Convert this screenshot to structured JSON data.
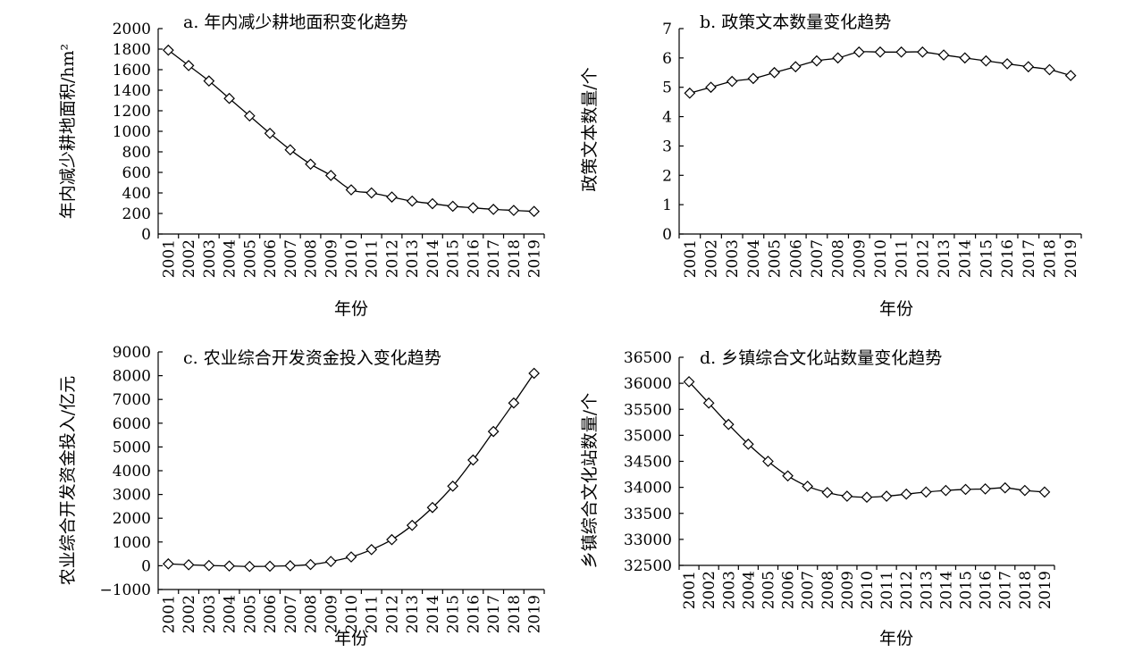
{
  "chart_data": [
    {
      "type": "line",
      "title": "a. 年内减少耕地面积变化趋势",
      "xlabel": "年份",
      "ylabel": "年内减少耕地面积/hm²",
      "ylim": [
        0,
        2000
      ],
      "yticks": [
        0,
        200,
        400,
        600,
        800,
        1000,
        1200,
        1400,
        1600,
        1800,
        2000
      ],
      "x": [
        "2001",
        "2002",
        "2003",
        "2004",
        "2005",
        "2006",
        "2007",
        "2008",
        "2009",
        "2010",
        "2011",
        "2012",
        "2013",
        "2014",
        "2015",
        "2016",
        "2017",
        "2018",
        "2019"
      ],
      "values": [
        1790,
        1640,
        1490,
        1320,
        1150,
        980,
        820,
        680,
        570,
        430,
        400,
        360,
        320,
        295,
        270,
        255,
        240,
        230,
        220
      ],
      "grid": false
    },
    {
      "type": "line",
      "title": "b. 政策文本数量变化趋势",
      "xlabel": "年份",
      "ylabel": "政策文本数量/个",
      "ylim": [
        0,
        7
      ],
      "yticks": [
        0,
        1,
        2,
        3,
        4,
        5,
        6,
        7
      ],
      "x": [
        "2001",
        "2002",
        "2003",
        "2004",
        "2005",
        "2006",
        "2007",
        "2008",
        "2009",
        "2010",
        "2011",
        "2012",
        "2013",
        "2014",
        "2015",
        "2016",
        "2017",
        "2018",
        "2019"
      ],
      "values": [
        4.8,
        5.0,
        5.2,
        5.3,
        5.5,
        5.7,
        5.9,
        6.0,
        6.2,
        6.2,
        6.2,
        6.2,
        6.1,
        6.0,
        5.9,
        5.8,
        5.7,
        5.6,
        5.4
      ],
      "grid": false
    },
    {
      "type": "line",
      "title": "c. 农业综合开发资金投入变化趋势",
      "xlabel": "年份",
      "ylabel": "农业综合开发资金投入/亿元",
      "ylim": [
        -1000,
        9000
      ],
      "yticks": [
        -1000,
        0,
        1000,
        2000,
        3000,
        4000,
        5000,
        6000,
        7000,
        8000,
        9000
      ],
      "ytick_labels": [
        "−1000",
        "0",
        "1000",
        "2000",
        "3000",
        "4000",
        "5000",
        "6000",
        "7000",
        "8000",
        "9000"
      ],
      "x": [
        "2001",
        "2002",
        "2003",
        "2004",
        "2005",
        "2006",
        "2007",
        "2008",
        "2009",
        "2010",
        "2011",
        "2012",
        "2013",
        "2014",
        "2015",
        "2016",
        "2017",
        "2018",
        "2019"
      ],
      "values": [
        80,
        40,
        10,
        -10,
        -30,
        -20,
        0,
        50,
        180,
        370,
        680,
        1100,
        1700,
        2450,
        3350,
        4450,
        5650,
        6850,
        8100
      ],
      "grid": false
    },
    {
      "type": "line",
      "title": "d. 乡镇综合文化站数量变化趋势",
      "xlabel": "年份",
      "ylabel": "乡镇综合文化站数量/个",
      "ylim": [
        32500,
        36500
      ],
      "yticks": [
        32500,
        33000,
        33500,
        34000,
        34500,
        35000,
        35500,
        36000,
        36500
      ],
      "x": [
        "2001",
        "2002",
        "2003",
        "2004",
        "2005",
        "2006",
        "2007",
        "2008",
        "2009",
        "2010",
        "2011",
        "2012",
        "2013",
        "2014",
        "2015",
        "2016",
        "2017",
        "2018",
        "2019"
      ],
      "values": [
        36030,
        35620,
        35210,
        34830,
        34500,
        34220,
        34020,
        33900,
        33830,
        33810,
        33830,
        33870,
        33910,
        33940,
        33960,
        33970,
        33990,
        33940,
        33910
      ],
      "grid": false
    }
  ]
}
